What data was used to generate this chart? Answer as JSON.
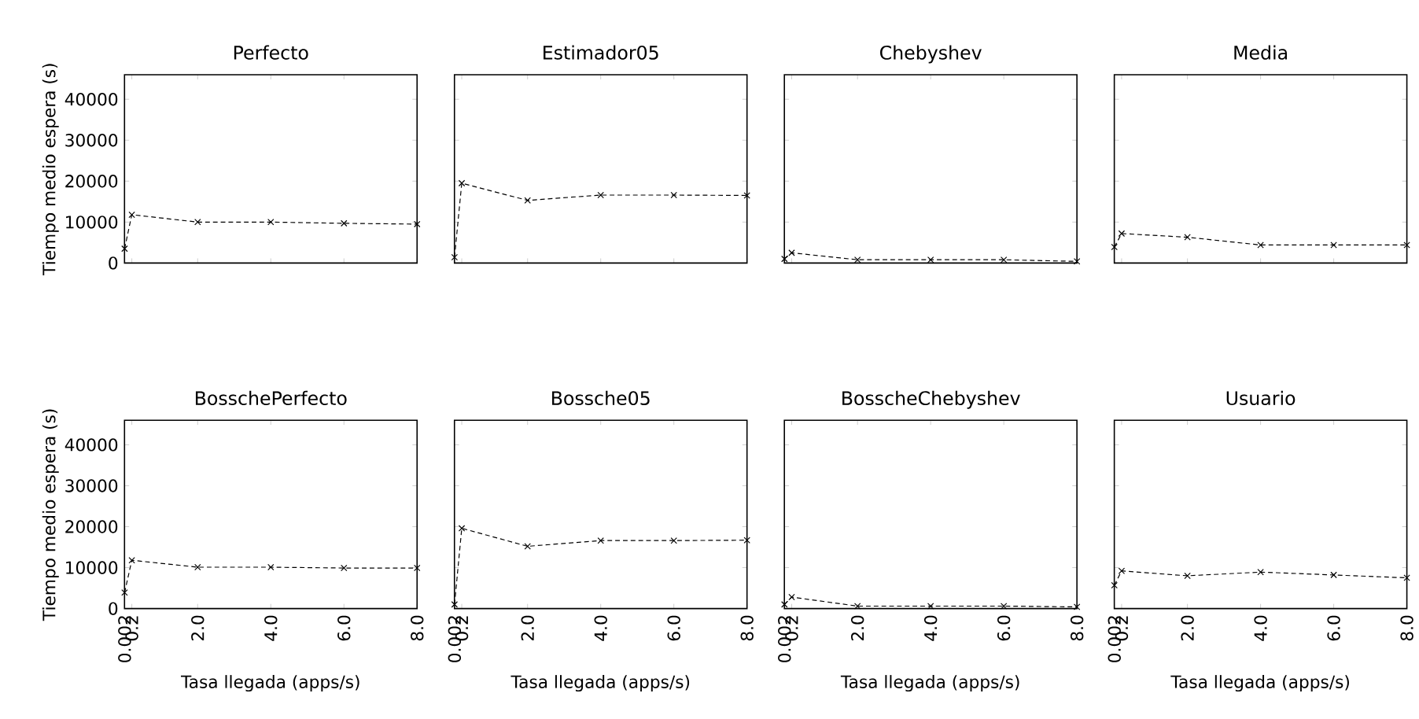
{
  "chart_data": [
    {
      "type": "line",
      "title": "Perfecto",
      "ylabel": "Tiempo medio espera (s)",
      "x": [
        0.002,
        0.2,
        2,
        4,
        6,
        8
      ],
      "values": [
        3500,
        11800,
        10000,
        10000,
        9700,
        9500
      ],
      "color": "#000000",
      "marker": "cross",
      "line_style": "dashed",
      "xlim": [
        0,
        8
      ],
      "ylim": [
        0,
        46000
      ],
      "xticks": [
        0.002,
        0.2,
        2,
        4,
        6,
        8
      ],
      "yticks": [
        0,
        10000,
        20000,
        30000,
        40000
      ],
      "tick_labels": "y"
    },
    {
      "type": "line",
      "title": "Estimador05",
      "x": [
        0.002,
        0.2,
        2,
        4,
        6,
        8
      ],
      "values": [
        1400,
        19500,
        15300,
        16600,
        16600,
        16500
      ],
      "color": "#000000",
      "marker": "cross",
      "line_style": "dashed",
      "xlim": [
        0,
        8
      ],
      "ylim": [
        0,
        46000
      ],
      "xticks": [
        0.002,
        0.2,
        2,
        4,
        6,
        8
      ],
      "yticks": [
        0,
        10000,
        20000,
        30000,
        40000
      ],
      "tick_labels": false
    },
    {
      "type": "line",
      "title": "Chebyshev",
      "x": [
        0.002,
        0.2,
        2,
        4,
        6,
        8
      ],
      "values": [
        1000,
        2500,
        800,
        800,
        800,
        400
      ],
      "color": "#000000",
      "marker": "cross",
      "line_style": "dashed",
      "xlim": [
        0,
        8
      ],
      "ylim": [
        0,
        46000
      ],
      "xticks": [
        0.002,
        0.2,
        2,
        4,
        6,
        8
      ],
      "yticks": [
        0,
        10000,
        20000,
        30000,
        40000
      ],
      "tick_labels": false
    },
    {
      "type": "line",
      "title": "Media",
      "x": [
        0.002,
        0.2,
        2,
        4,
        6,
        8
      ],
      "values": [
        3900,
        7200,
        6300,
        4400,
        4400,
        4400
      ],
      "color": "#000000",
      "marker": "cross",
      "line_style": "dashed",
      "xlim": [
        0,
        8
      ],
      "ylim": [
        0,
        46000
      ],
      "xticks": [
        0.002,
        0.2,
        2,
        4,
        6,
        8
      ],
      "yticks": [
        0,
        10000,
        20000,
        30000,
        40000
      ],
      "tick_labels": false
    },
    {
      "type": "line",
      "title": "BosschePerfecto",
      "xlabel": "Tasa llegada (apps/s)",
      "ylabel": "Tiempo medio espera (s)",
      "x": [
        0.002,
        0.2,
        2,
        4,
        6,
        8
      ],
      "values": [
        3900,
        11800,
        10100,
        10100,
        9900,
        9900
      ],
      "color": "#000000",
      "marker": "cross",
      "line_style": "dashed",
      "xlim": [
        0,
        8
      ],
      "ylim": [
        0,
        46000
      ],
      "xticks": [
        0.002,
        0.2,
        {
          "value": 2,
          "label": "2.0"
        },
        {
          "value": 4,
          "label": "4.0"
        },
        {
          "value": 6,
          "label": "6.0"
        },
        {
          "value": 8,
          "label": "8.0"
        }
      ],
      "yticks": [
        0,
        10000,
        20000,
        30000,
        40000
      ]
    },
    {
      "type": "line",
      "title": "Bossche05",
      "xlabel": "Tasa llegada (apps/s)",
      "x": [
        0.002,
        0.2,
        2,
        4,
        6,
        8
      ],
      "values": [
        1000,
        19600,
        15200,
        16600,
        16600,
        16700
      ],
      "color": "#000000",
      "marker": "cross",
      "line_style": "dashed",
      "xlim": [
        0,
        8
      ],
      "ylim": [
        0,
        46000
      ],
      "xticks": [
        0.002,
        0.2,
        {
          "value": 2,
          "label": "2.0"
        },
        {
          "value": 4,
          "label": "4.0"
        },
        {
          "value": 6,
          "label": "6.0"
        },
        {
          "value": 8,
          "label": "8.0"
        }
      ],
      "yticks": [
        0,
        10000,
        20000,
        30000,
        40000
      ],
      "tick_labels": "x"
    },
    {
      "type": "line",
      "title": "BosscheChebyshev",
      "xlabel": "Tasa llegada (apps/s)",
      "x": [
        0.002,
        0.2,
        2,
        4,
        6,
        8
      ],
      "values": [
        1000,
        2800,
        600,
        600,
        600,
        400
      ],
      "color": "#000000",
      "marker": "cross",
      "line_style": "dashed",
      "xlim": [
        0,
        8
      ],
      "ylim": [
        0,
        46000
      ],
      "xticks": [
        0.002,
        0.2,
        {
          "value": 2,
          "label": "2.0"
        },
        {
          "value": 4,
          "label": "4.0"
        },
        {
          "value": 6,
          "label": "6.0"
        },
        {
          "value": 8,
          "label": "8.0"
        }
      ],
      "yticks": [
        0,
        10000,
        20000,
        30000,
        40000
      ],
      "tick_labels": "x"
    },
    {
      "type": "line",
      "title": "Usuario",
      "xlabel": "Tasa llegada (apps/s)",
      "x": [
        0.002,
        0.2,
        2,
        4,
        6,
        8
      ],
      "values": [
        5700,
        9200,
        8000,
        8900,
        8200,
        7500
      ],
      "color": "#000000",
      "marker": "cross",
      "line_style": "dashed",
      "xlim": [
        0,
        8
      ],
      "ylim": [
        0,
        46000
      ],
      "xticks": [
        0.002,
        0.2,
        {
          "value": 2,
          "label": "2.0"
        },
        {
          "value": 4,
          "label": "4.0"
        },
        {
          "value": 6,
          "label": "6.0"
        },
        {
          "value": 8,
          "label": "8.0"
        }
      ],
      "yticks": [
        0,
        10000,
        20000,
        30000,
        40000
      ],
      "tick_labels": "x"
    }
  ]
}
